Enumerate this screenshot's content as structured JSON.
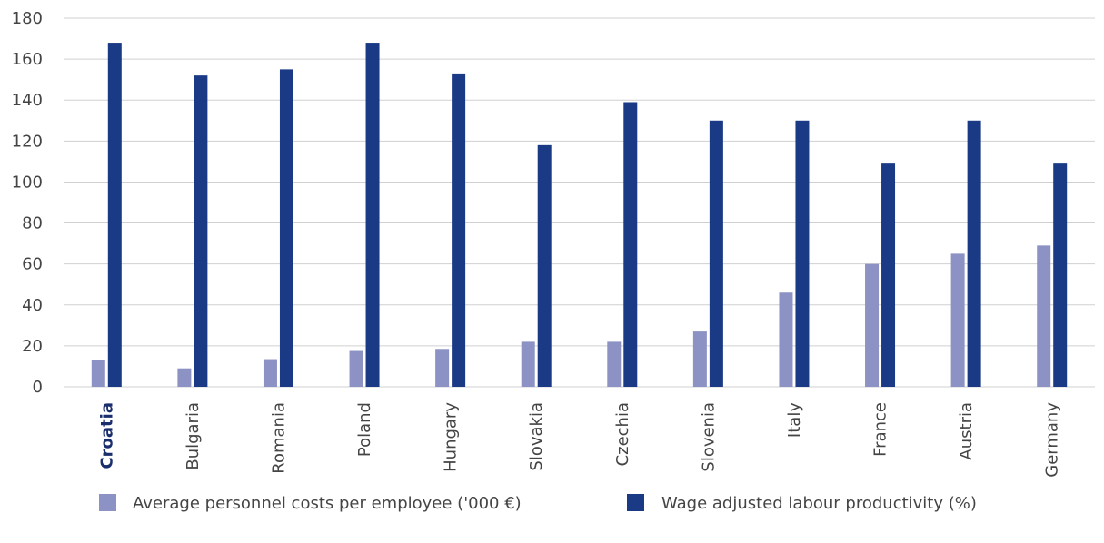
{
  "colors": {
    "series_light": "#8c93c4",
    "series_dark": "#1a3a85",
    "highlight_label": "#1a2e6e",
    "grid": "#d0d0d0",
    "text": "#444444"
  },
  "chart_data": {
    "type": "bar",
    "title": "",
    "xlabel": "",
    "ylabel": "",
    "ylim": [
      0,
      180
    ],
    "yticks": [
      0,
      20,
      40,
      60,
      80,
      100,
      120,
      140,
      160,
      180
    ],
    "grid": true,
    "legend_position": "bottom",
    "highlighted_category": "Croatia",
    "categories": [
      "Croatia",
      "Bulgaria",
      "Romania",
      "Poland",
      "Hungary",
      "Slovakia",
      "Czechia",
      "Slovenia",
      "Italy",
      "France",
      "Austria",
      "Germany"
    ],
    "series": [
      {
        "name": "Average personnel costs per employee ('000 €)",
        "color_key": "series_light",
        "values": [
          13,
          9,
          13.5,
          17.5,
          18.5,
          22,
          22,
          27,
          46,
          60,
          65,
          69
        ]
      },
      {
        "name": "Wage adjusted labour productivity (%)",
        "color_key": "series_dark",
        "values": [
          168,
          152,
          155,
          168,
          153,
          118,
          139,
          130,
          130,
          109,
          130,
          109
        ]
      }
    ]
  }
}
